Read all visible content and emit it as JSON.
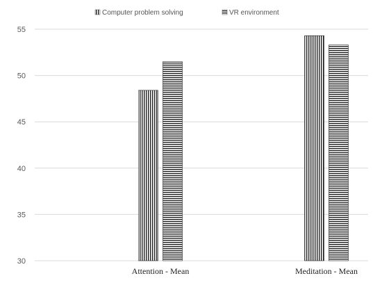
{
  "chart_data": {
    "type": "bar",
    "categories": [
      "Attention - Mean",
      "Meditation - Mean"
    ],
    "series": [
      {
        "name": "Computer problem solving",
        "values": [
          48.4,
          54.3
        ],
        "pattern": "vertical-stripes"
      },
      {
        "name": "VR environment",
        "values": [
          51.5,
          53.3
        ],
        "pattern": "horizontal-stripes"
      }
    ],
    "ylim": [
      30,
      55
    ],
    "yticks": [
      30,
      35,
      40,
      45,
      50,
      55
    ],
    "grid": true,
    "legend_position": "top",
    "colors": {
      "bar_stroke": "#222222",
      "grid": "#d9d9d9",
      "axis_text": "#595959"
    }
  }
}
